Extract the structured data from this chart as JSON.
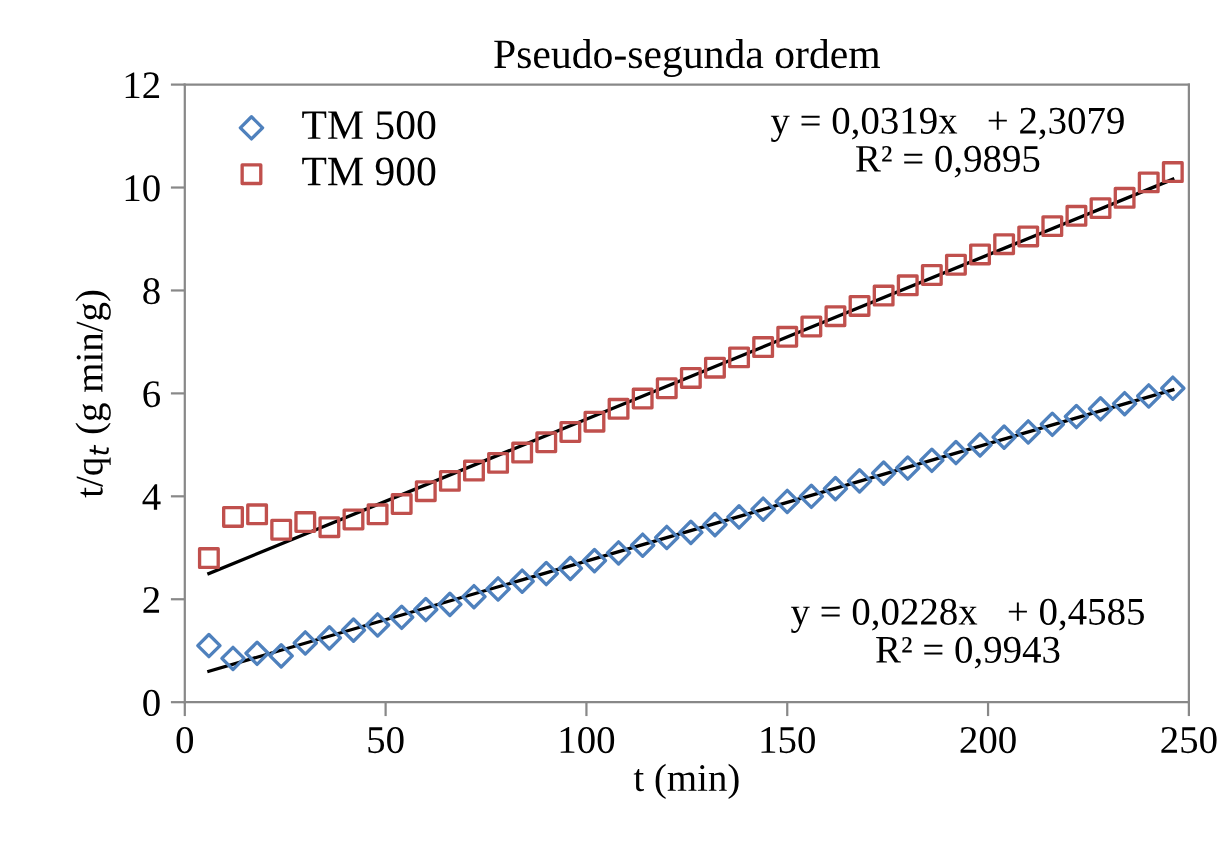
{
  "chart_data": {
    "type": "scatter",
    "title": "Pseudo-segunda ordem",
    "xlabel": "t (min)",
    "ylabel": "t/q$_{t}$ (g min/g)",
    "xlim": [
      0,
      250
    ],
    "xticks": [
      0,
      50,
      100,
      150,
      200,
      250
    ],
    "ylim": [
      0,
      12
    ],
    "yticks": [
      0,
      2,
      4,
      6,
      8,
      10,
      12
    ],
    "grid": false,
    "legend": "top left",
    "series": [
      {
        "name": "TM 500",
        "color": "#4f81bd",
        "marker": "diamond",
        "x": [
          6,
          12,
          18,
          24,
          30,
          36,
          42,
          48,
          54,
          60,
          66,
          72,
          78,
          84,
          90,
          96,
          102,
          108,
          114,
          120,
          126,
          132,
          138,
          144,
          150,
          156,
          162,
          168,
          174,
          180,
          186,
          192,
          198,
          204,
          210,
          216,
          222,
          228,
          234,
          240,
          246
        ],
        "values": [
          1.1,
          0.85,
          0.95,
          0.9,
          1.15,
          1.25,
          1.4,
          1.5,
          1.65,
          1.8,
          1.9,
          2.05,
          2.2,
          2.35,
          2.5,
          2.6,
          2.75,
          2.9,
          3.05,
          3.2,
          3.3,
          3.45,
          3.6,
          3.75,
          3.9,
          4.0,
          4.15,
          4.3,
          4.45,
          4.55,
          4.7,
          4.85,
          5.0,
          5.15,
          5.25,
          5.4,
          5.55,
          5.7,
          5.8,
          5.95,
          6.1
        ]
      },
      {
        "name": "TM 900",
        "color": "#c0504d",
        "marker": "square",
        "x": [
          6,
          12,
          18,
          24,
          30,
          36,
          42,
          48,
          54,
          60,
          66,
          72,
          78,
          84,
          90,
          96,
          102,
          108,
          114,
          120,
          126,
          132,
          138,
          144,
          150,
          156,
          162,
          168,
          174,
          180,
          186,
          192,
          198,
          204,
          210,
          216,
          222,
          228,
          234,
          240,
          246
        ],
        "values": [
          2.8,
          3.6,
          3.65,
          3.35,
          3.5,
          3.4,
          3.55,
          3.65,
          3.85,
          4.1,
          4.3,
          4.5,
          4.65,
          4.85,
          5.05,
          5.25,
          5.45,
          5.7,
          5.9,
          6.1,
          6.3,
          6.5,
          6.7,
          6.9,
          7.1,
          7.3,
          7.5,
          7.7,
          7.9,
          8.1,
          8.3,
          8.5,
          8.7,
          8.9,
          9.05,
          9.25,
          9.45,
          9.6,
          9.8,
          10.1,
          10.3
        ]
      },
      {
        "type": "line",
        "color": "#000000",
        "x": [
          6,
          246
        ],
        "values": [
          2.5,
          10.16
        ]
      },
      {
        "type": "line",
        "color": "#000000",
        "x": [
          6,
          246
        ],
        "values": [
          0.6,
          6.07
        ]
      }
    ],
    "annotations": [
      "y = 0,0319x   + 2,3079\nR² = 0,9895",
      "y = 0,0228x   + 0,4585\nR² = 0,9943"
    ]
  }
}
